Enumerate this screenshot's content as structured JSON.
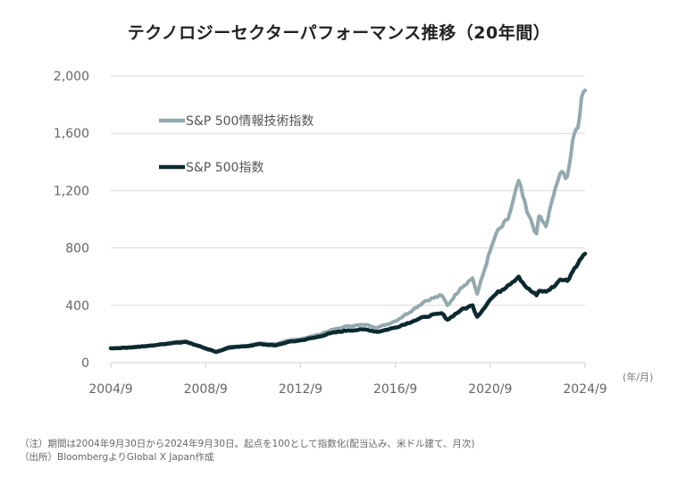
{
  "chart_data": {
    "type": "line",
    "title": "テクノロジーセクターパフォーマンス推移（20年間）",
    "xlabel": "",
    "ylabel": "",
    "x_unit_label": "(年/月)",
    "x_range": [
      2004.75,
      2024.75
    ],
    "ylim": [
      0,
      2000
    ],
    "yticks": [
      0,
      400,
      800,
      1200,
      1600,
      2000
    ],
    "ytick_labels": [
      "0",
      "400",
      "800",
      "1,200",
      "1,600",
      "2,000"
    ],
    "xticks": [
      2004.75,
      2008.75,
      2012.75,
      2016.75,
      2020.75,
      2024.75
    ],
    "xtick_labels": [
      "2004/9",
      "2008/9",
      "2012/9",
      "2016/9",
      "2020/9",
      "2024/9"
    ],
    "grid": true,
    "legend_position": "top-left",
    "series": [
      {
        "name": "S&P 500情報技術指数",
        "color": "#93a9ad",
        "x": [
          2004.75,
          2005.5,
          2006.25,
          2006.75,
          2007.5,
          2007.9,
          2008.5,
          2008.75,
          2009.2,
          2009.75,
          2010.5,
          2011.0,
          2011.7,
          2012.25,
          2012.75,
          2013.5,
          2014.0,
          2014.75,
          2015.5,
          2016.0,
          2016.75,
          2017.5,
          2018.0,
          2018.7,
          2018.95,
          2019.5,
          2020.0,
          2020.2,
          2020.75,
          2021.0,
          2021.5,
          2021.95,
          2022.3,
          2022.7,
          2022.8,
          2023.1,
          2023.5,
          2023.7,
          2024.0,
          2024.3,
          2024.45,
          2024.6,
          2024.75
        ],
        "values": [
          100,
          108,
          118,
          125,
          145,
          150,
          115,
          95,
          75,
          112,
          118,
          135,
          130,
          155,
          165,
          195,
          225,
          255,
          265,
          245,
          290,
          370,
          430,
          470,
          400,
          520,
          590,
          480,
          780,
          900,
          1000,
          1270,
          1050,
          900,
          1020,
          950,
          1220,
          1320,
          1300,
          1600,
          1640,
          1850,
          1900
        ]
      },
      {
        "name": "S&P 500指数",
        "color": "#0d2a2e",
        "x": [
          2004.75,
          2005.5,
          2006.25,
          2006.75,
          2007.5,
          2007.9,
          2008.5,
          2008.75,
          2009.2,
          2009.75,
          2010.5,
          2011.0,
          2011.7,
          2012.25,
          2012.75,
          2013.5,
          2014.0,
          2014.75,
          2015.5,
          2016.0,
          2016.75,
          2017.5,
          2018.0,
          2018.7,
          2018.95,
          2019.5,
          2020.0,
          2020.2,
          2020.75,
          2021.0,
          2021.5,
          2021.95,
          2022.3,
          2022.7,
          2022.8,
          2023.1,
          2023.5,
          2023.7,
          2024.0,
          2024.3,
          2024.45,
          2024.6,
          2024.75
        ],
        "values": [
          100,
          105,
          115,
          125,
          140,
          145,
          115,
          100,
          75,
          105,
          115,
          130,
          120,
          145,
          155,
          180,
          205,
          225,
          232,
          215,
          245,
          290,
          320,
          345,
          300,
          365,
          400,
          320,
          440,
          480,
          540,
          600,
          520,
          470,
          500,
          495,
          540,
          580,
          570,
          660,
          690,
          730,
          760
        ]
      }
    ]
  },
  "notes": {
    "note": "（注）期間は2004年9月30日から2024年9月30日。起点を100として指数化(配当込み、米ドル建て、月次)",
    "source": "（出所）BloombergよりGlobal X Japan作成"
  }
}
